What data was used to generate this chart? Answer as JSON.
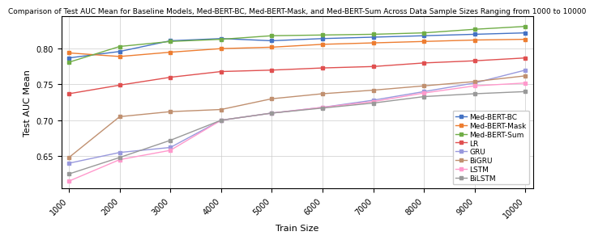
{
  "title": "Comparison of Test AUC Mean for Baseline Models, Med-BERT-BC, Med-BERT-Mask, and Med-BERT-Sum Across Data Sample Sizes Ranging from 1000 to 10000",
  "xlabel": "Train Size",
  "ylabel": "Test AUC Mean",
  "x": [
    1000,
    2000,
    3000,
    4000,
    5000,
    6000,
    7000,
    8000,
    9000,
    10000
  ],
  "series": {
    "Med-BERT-BC": {
      "values": [
        0.787,
        0.796,
        0.811,
        0.814,
        0.811,
        0.814,
        0.816,
        0.818,
        0.82,
        0.822
      ],
      "color": "#4472C4",
      "marker": "s"
    },
    "Med-BERT-Mask": {
      "values": [
        0.794,
        0.789,
        0.795,
        0.8,
        0.802,
        0.806,
        0.808,
        0.81,
        0.812,
        0.813
      ],
      "color": "#ED7D31",
      "marker": "s"
    },
    "Med-BERT-Sum": {
      "values": [
        0.781,
        0.803,
        0.81,
        0.813,
        0.818,
        0.819,
        0.82,
        0.822,
        0.827,
        0.831
      ],
      "color": "#70AD47",
      "marker": "s"
    },
    "LR": {
      "values": [
        0.737,
        0.749,
        0.76,
        0.768,
        0.77,
        0.773,
        0.775,
        0.78,
        0.783,
        0.787
      ],
      "color": "#E05050",
      "marker": "s"
    },
    "GRU": {
      "values": [
        0.64,
        0.655,
        0.662,
        0.7,
        0.71,
        0.718,
        0.728,
        0.74,
        0.752,
        0.77
      ],
      "color": "#9999DD",
      "marker": "s"
    },
    "BiGRU": {
      "values": [
        0.648,
        0.705,
        0.712,
        0.715,
        0.73,
        0.737,
        0.742,
        0.748,
        0.754,
        0.762
      ],
      "color": "#C09070",
      "marker": "s"
    },
    "LSTM": {
      "values": [
        0.615,
        0.645,
        0.658,
        0.7,
        0.71,
        0.718,
        0.726,
        0.738,
        0.748,
        0.752
      ],
      "color": "#FF99CC",
      "marker": "s"
    },
    "BiLSTM": {
      "values": [
        0.625,
        0.648,
        0.672,
        0.7,
        0.71,
        0.717,
        0.724,
        0.733,
        0.737,
        0.74
      ],
      "color": "#999999",
      "marker": "s"
    }
  },
  "xlim": [
    850,
    10150
  ],
  "ylim": [
    0.605,
    0.845
  ],
  "xticks": [
    1000,
    2000,
    3000,
    4000,
    5000,
    6000,
    7000,
    8000,
    9000,
    10000
  ],
  "yticks": [
    0.65,
    0.7,
    0.75,
    0.8
  ],
  "title_fontsize": 6.5,
  "label_fontsize": 8,
  "tick_fontsize": 7,
  "legend_fontsize": 6.5,
  "linewidth": 1.0,
  "markersize": 3.0
}
